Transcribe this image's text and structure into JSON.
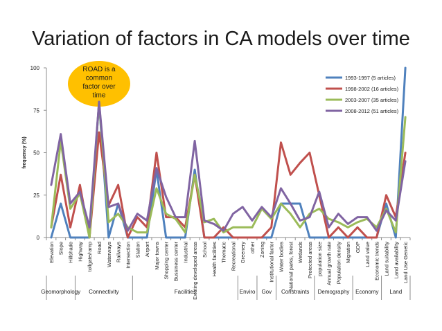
{
  "page": {
    "title": "Variation of factors in CA models over time"
  },
  "chart_data": {
    "type": "line",
    "title": "Variation of factors in CA models over time",
    "ylabel": "frequency (%)",
    "xlabel": "",
    "ylim": [
      0,
      100
    ],
    "yticks": [
      0,
      25,
      50,
      75,
      100
    ],
    "grid": false,
    "legend": "top-right",
    "categories": [
      "Elevation",
      "Slope",
      "Hillshade",
      "Highway",
      "tollgate/ramp",
      "Road",
      "Waterways",
      "Railways",
      "Intersection",
      "Station",
      "Airport",
      "Major towns",
      "Shopping center",
      "Bussiness center",
      "Industrial",
      "Existing developed areas",
      "School",
      "Health facilities",
      "Thematic",
      "Recreational",
      "Greenery",
      "other",
      "Zoning",
      "Institutional factor",
      "Water bodies",
      "National parks, forest",
      "Wetlands",
      "Protected areas",
      "population size",
      "Annual growth rate",
      "Population density",
      "Migration",
      "GDP",
      "Land value",
      "Economic trends",
      "Land suitability",
      "Land availability",
      "Land Use Genetic"
    ],
    "series": [
      {
        "name": "1993-1997 (5 articles)",
        "color": "#4f81bd",
        "values": [
          0,
          20,
          0,
          0,
          0,
          80,
          0,
          20,
          0,
          0,
          0,
          40,
          0,
          0,
          0,
          40,
          0,
          0,
          0,
          0,
          0,
          0,
          0,
          0,
          20,
          20,
          20,
          0,
          0,
          0,
          0,
          0,
          0,
          0,
          0,
          20,
          0,
          100
        ]
      },
      {
        "name": "1998-2002 (16 articles)",
        "color": "#c0504d",
        "values": [
          6,
          37,
          6,
          31,
          0,
          62,
          19,
          31,
          0,
          12,
          6,
          50,
          12,
          12,
          6,
          37,
          0,
          0,
          6,
          0,
          0,
          0,
          0,
          6,
          56,
          37,
          44,
          50,
          25,
          0,
          6,
          0,
          6,
          0,
          0,
          25,
          12,
          50
        ]
      },
      {
        "name": "2003-2007 (35 articles)",
        "color": "#9bbb59",
        "values": [
          6,
          57,
          17,
          26,
          0,
          80,
          9,
          14,
          6,
          3,
          3,
          29,
          14,
          11,
          3,
          37,
          9,
          11,
          3,
          6,
          6,
          6,
          17,
          11,
          20,
          14,
          6,
          14,
          17,
          11,
          9,
          6,
          9,
          11,
          6,
          17,
          3,
          71
        ]
      },
      {
        "name": "2008-2012 (51 articles)",
        "color": "#8064a2",
        "values": [
          31,
          61,
          20,
          27,
          6,
          80,
          18,
          20,
          4,
          14,
          10,
          41,
          24,
          12,
          12,
          57,
          10,
          8,
          4,
          14,
          18,
          10,
          18,
          12,
          29,
          20,
          10,
          12,
          27,
          6,
          14,
          8,
          12,
          12,
          4,
          16,
          10,
          45
        ]
      }
    ],
    "groups": [
      {
        "label": "Geomorphology",
        "start": 0,
        "end": 2
      },
      {
        "label": "Connectivity",
        "start": 3,
        "end": 8
      },
      {
        "label": "Facilities",
        "start": 9,
        "end": 19
      },
      {
        "label": "Enviro",
        "start": 20,
        "end": 21
      },
      {
        "label": "Gov",
        "start": 22,
        "end": 23
      },
      {
        "label": "Constraints",
        "start": 24,
        "end": 27
      },
      {
        "label": "Demography",
        "start": 28,
        "end": 31
      },
      {
        "label": "Economy",
        "start": 32,
        "end": 34
      },
      {
        "label": "Land",
        "start": 35,
        "end": 37
      }
    ],
    "annotation": {
      "text": "ROAD is a common factor over time",
      "lines": [
        "ROAD is a",
        "common",
        "factor over",
        "time"
      ],
      "color": "#ffc000",
      "category": "Road"
    }
  }
}
